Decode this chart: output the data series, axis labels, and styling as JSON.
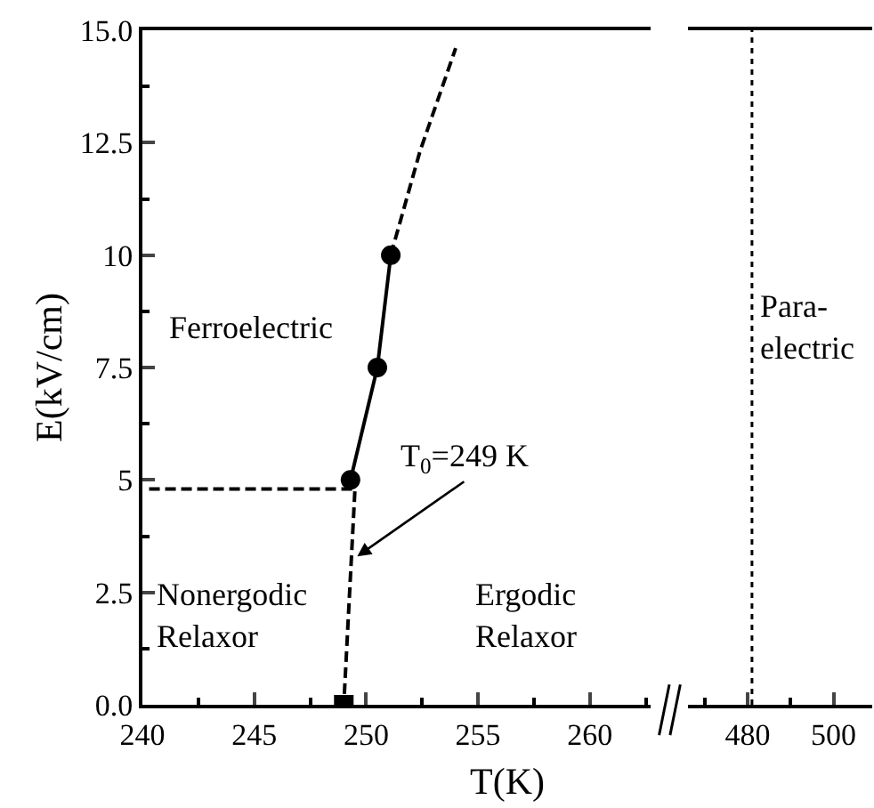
{
  "chart_data": {
    "type": "line",
    "xlabel": "T(K)",
    "ylabel": "E(kV/cm)",
    "xlim": [
      240,
      262.7
    ],
    "xticks": [
      240,
      245,
      250,
      255,
      260
    ],
    "x2lim": [
      466,
      509
    ],
    "x2ticks": [
      480,
      500
    ],
    "ylim": [
      0,
      15
    ],
    "yticks": [
      {
        "value": 0,
        "label": "0.0"
      },
      2.5,
      5,
      7.5,
      10,
      12.5,
      {
        "value": 15,
        "label": "15.0"
      }
    ],
    "series": [
      {
        "color": "#000000",
        "x": [
          249.3,
          250.5,
          251.1
        ],
        "values": [
          5,
          7.5,
          10
        ],
        "marker": "circle",
        "line_style": "solid"
      },
      {
        "color": "#000000",
        "x": [
          251.1,
          252.4,
          254.0
        ],
        "values": [
          10,
          12.3,
          14.6
        ],
        "marker": "none",
        "line_style": "dashed"
      },
      {
        "color": "#000000",
        "x": [
          240.3,
          249.5,
          249.0
        ],
        "values": [
          4.8,
          4.8,
          0
        ],
        "marker": "none",
        "line_style": "dashed"
      },
      {
        "type": "scatter",
        "color": "#000000",
        "x": [
          249
        ],
        "values": [
          0
        ],
        "marker": "square"
      }
    ],
    "ref_lines": [
      {
        "axis": "x2",
        "value": 481,
        "line_style": "dotted",
        "color": "#000000"
      }
    ],
    "annotations": [
      "Ferroelectric",
      "Para-\nelectric",
      "Nonergodic\nRelaxor",
      "Ergodic\nRelaxor",
      {
        "text": "T$_{0}$=249 K",
        "x": 249.6,
        "y": 3.3
      }
    ]
  }
}
